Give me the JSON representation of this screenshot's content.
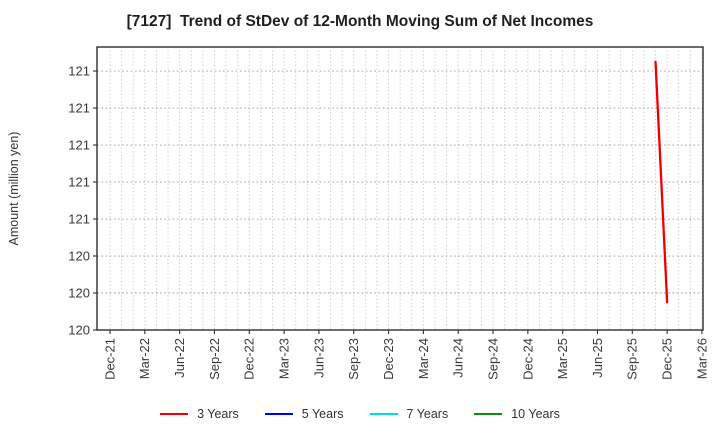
{
  "chart_data": {
    "type": "line",
    "title": "[7127]  Trend of StDev of 12-Month Moving Sum of Net Incomes",
    "xlabel": "",
    "ylabel": "Amount (million yen)",
    "x_tick_labels": [
      "Dec-21",
      "Mar-22",
      "Jun-22",
      "Sep-22",
      "Dec-22",
      "Mar-23",
      "Jun-23",
      "Sep-23",
      "Dec-23",
      "Mar-24",
      "Jun-24",
      "Sep-24",
      "Dec-24",
      "Mar-25",
      "Jun-25",
      "Sep-25",
      "Dec-25",
      "Mar-26"
    ],
    "x_tick_interval_months": 3,
    "x_total_months": 51,
    "xlim_month_index": [
      -1.12,
      51.09
    ],
    "ylim": [
      119.9,
      121.43
    ],
    "y_ticks": [
      {
        "value": 121.3,
        "label": "121"
      },
      {
        "value": 121.1,
        "label": "121"
      },
      {
        "value": 120.9,
        "label": "121"
      },
      {
        "value": 120.7,
        "label": "121"
      },
      {
        "value": 120.5,
        "label": "121"
      },
      {
        "value": 120.3,
        "label": "120"
      },
      {
        "value": 120.1,
        "label": "120"
      },
      {
        "value": 119.9,
        "label": "120"
      }
    ],
    "grid": true,
    "legend_position": "bottom-center",
    "series": [
      {
        "name": "3 Years",
        "color": "#ee0000",
        "points": [
          {
            "x_label": "Nov-25",
            "month_index": 47,
            "y": 121.35
          },
          {
            "x_label": "Dec-25",
            "month_index": 48,
            "y": 120.05
          }
        ]
      },
      {
        "name": "5 Years",
        "color": "#0000ee",
        "points": []
      },
      {
        "name": "7 Years",
        "color": "#00dfdf",
        "points": []
      },
      {
        "name": "10 Years",
        "color": "#0e8a0e",
        "points": []
      }
    ]
  },
  "colors": {
    "title": "#1f1f1f",
    "tick_label": "#3a3a3a",
    "axis_border": "#2e2e2e",
    "grid_vertical": "#b8b8b8",
    "grid_horizontal": "#a0a0a0",
    "background": "#ffffff"
  }
}
